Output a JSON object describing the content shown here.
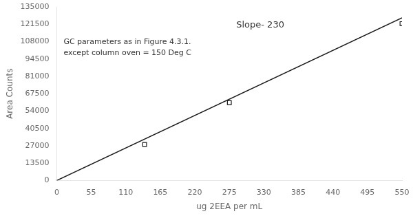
{
  "chart_data": {
    "type": "scatter",
    "xlabel": "ug 2EEA per mL",
    "ylabel": "Area Counts",
    "annotations": [
      "Slope- 230",
      "GC parameters as in Figure 4.3.1.",
      "except column oven = 150 Deg C"
    ],
    "series": [
      {
        "type": "line",
        "color": "#1a1a1a",
        "x": [
          0,
          550
        ],
        "values": [
          0,
          126500
        ]
      },
      {
        "type": "scatter",
        "color": "#1a1a1a",
        "marker": "square",
        "x": [
          140,
          275,
          550
        ],
        "values": [
          28000,
          60500,
          122000
        ]
      }
    ],
    "xlim": [
      0,
      550
    ],
    "ylim": [
      0,
      135000
    ],
    "xticks": [
      0,
      55,
      110,
      165,
      220,
      275,
      330,
      385,
      440,
      495,
      550
    ],
    "yticks": [
      0,
      13500,
      27000,
      40500,
      54000,
      67500,
      81000,
      94500,
      108000,
      121500,
      135000
    ],
    "grid": false
  }
}
